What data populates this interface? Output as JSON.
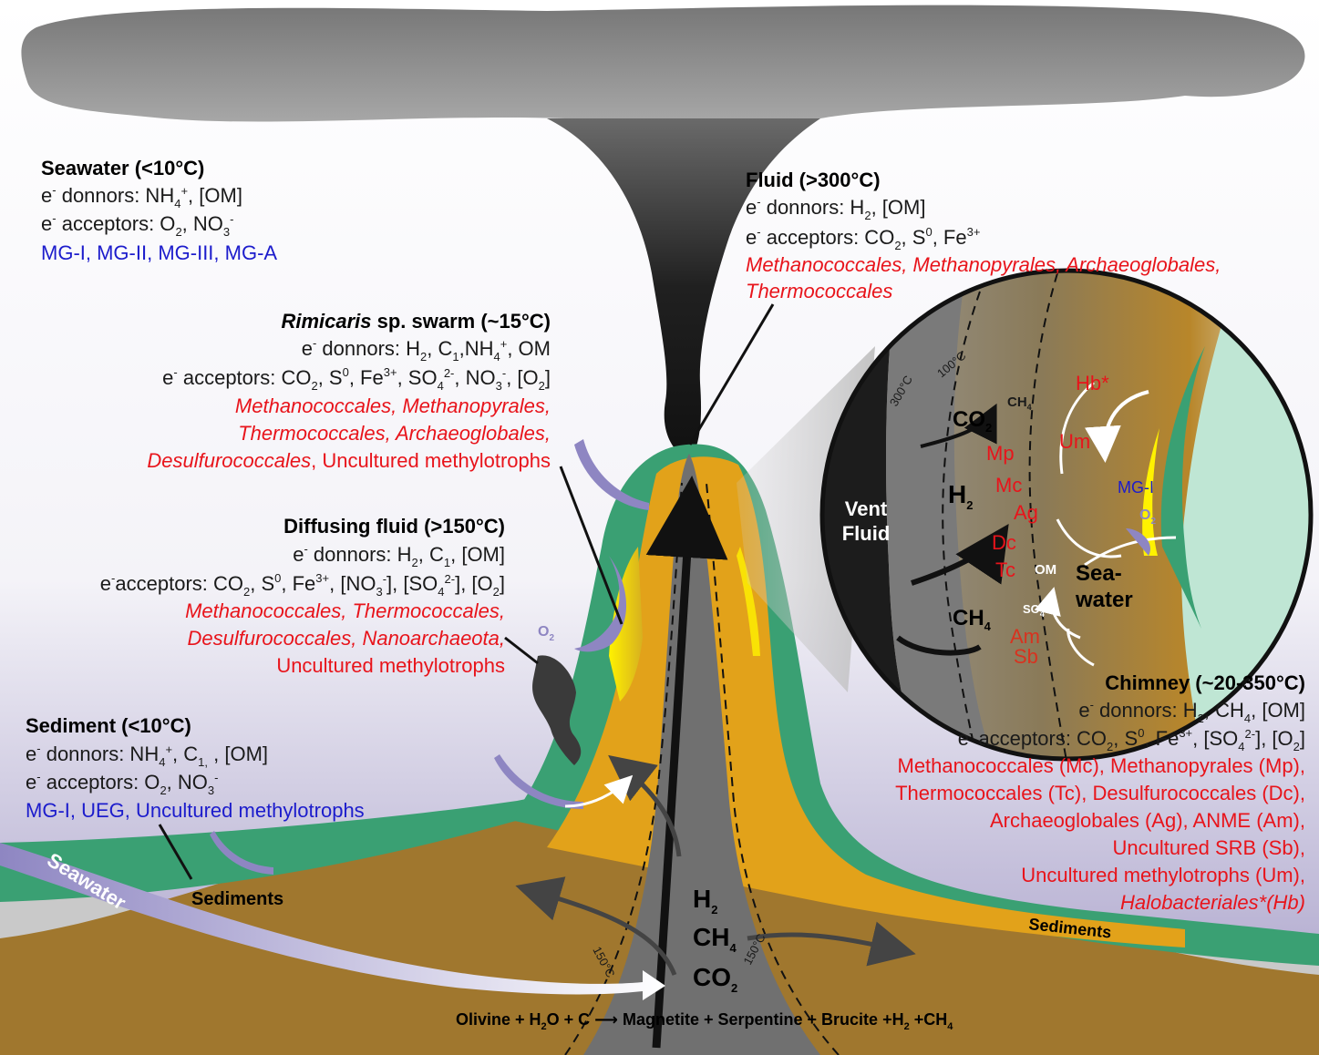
{
  "seawater": {
    "title": "Seawater (<10°C)",
    "donors": "donnors: NH4+, [OM]",
    "acceptors": "acceptors: O2, NO3-",
    "groups": "MG-I, MG-II, MG-III, MG-A"
  },
  "fluid": {
    "title": "Fluid (>300°C)",
    "donors": "donnors: H2, [OM]",
    "acceptors": "acceptors: CO2, S0, Fe3+",
    "groups_line1": "Methanococcales, Methanopyrales, Archaeoglobales,",
    "groups_line2": "Thermococcales"
  },
  "rimicaris": {
    "title_italic": "Rimicaris",
    "title_rest": " sp. swarm (~15°C)",
    "donors": "donnors: H2, C1,NH4+, OM",
    "acceptors": "acceptors: CO2, S0, Fe3+, SO42-, NO3-, [O2]",
    "line1": "Methanococcales, Methanopyrales,",
    "line2": "Thermococcales, Archaeoglobales,",
    "line3_italic": "Desulfurococcales",
    "line3_rest": ", Uncultured methylotrophs"
  },
  "diffusing": {
    "title": "Diffusing fluid (>150°C)",
    "donors": "donnors: H2, C1, [OM]",
    "acceptors": "acceptors: CO2, S0, Fe3+, [NO3-], [SO42-], [O2]",
    "line1": "Methanococcales, Thermococcales,",
    "line2": "Desulfurococcales, Nanoarchaeota,",
    "line3": "Uncultured methylotrophs"
  },
  "sediment": {
    "title": "Sediment (<10°C)",
    "donors": "donnors: NH4+, C1, , [OM]",
    "acceptors": "acceptors: O2, NO3-",
    "groups": "MG-I, UEG, Uncultured methylotrophs"
  },
  "chimney": {
    "title": "Chimney (~20-350°C)",
    "donors": "donnors: H2, CH4, [OM]",
    "acceptors": "acceptors: CO2, S0, Fe3+, [SO42-], [O2]",
    "l1": "Methanococcales (Mc), Methanopyrales (Mp),",
    "l2": "Thermococcales (Tc), Desulfurococcales (Dc),",
    "l3": "Archaeoglobales (Ag), ANME (Am),",
    "l4": "Uncultured SRB (Sb),",
    "l5": "Uncultured methylotrophs (Um),",
    "l6": "Halobacteriales*(Hb)"
  },
  "inset": {
    "vent": "Vent",
    "fluid": "Fluid",
    "co2": "CO2",
    "h2": "H2",
    "ch4": "CH4",
    "ch4_small": "CH4",
    "mp": "Mp",
    "mc": "Mc",
    "ag": "Ag",
    "dc": "Dc",
    "tc": "Tc",
    "am": "Am",
    "sb": "Sb",
    "hb": "Hb*",
    "um": "Um",
    "mg1": "MG-I",
    "o2": "O2",
    "om": "OM",
    "so4": "SO42-",
    "sea": "Sea-",
    "water": "water",
    "t300": "300°C",
    "t100": "100°C"
  },
  "labels": {
    "sediments_left": "Sediments",
    "sediments_right": "Sediments",
    "seawater_arrow": "Seawater",
    "o2": "O2",
    "t150_left": "150°C",
    "t150_right": "150°C",
    "gas_h2": "H2",
    "gas_ch4": "CH4",
    "gas_co2": "CO2",
    "reaction": "Olivine + H2O + C ⟶ Magnetite + Serpentine + Brucite +H2 +CH4"
  },
  "colors": {
    "orange": "#e2a21a",
    "green": "#3aa073",
    "brown": "#a0772e",
    "grey": "#6a6a6a",
    "red": "#e8141b",
    "blue": "#1c1ccc",
    "purple": "#8e86c2"
  }
}
